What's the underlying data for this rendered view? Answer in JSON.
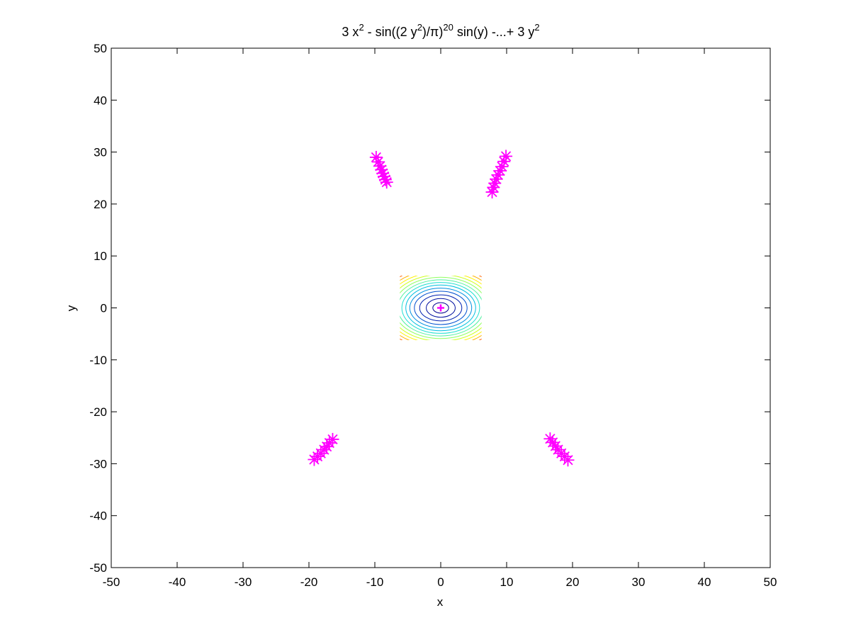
{
  "chart_data": {
    "type": "scatter",
    "title": "3 x^2 - sin((2 y^2)/π)^20 sin(y) -...+ 3 y^2",
    "title_parts": {
      "p1": "3 x",
      "e1": "2",
      "p2": " - sin((2 y",
      "e2": "2",
      "p3": ")/π)",
      "e3": "20",
      "p4": " sin(y) -...+ 3 y",
      "e4": "2"
    },
    "xlabel": "x",
    "ylabel": "y",
    "xlim": [
      -50,
      50
    ],
    "ylim": [
      -50,
      50
    ],
    "xticks": [
      -50,
      -40,
      -30,
      -20,
      -10,
      0,
      10,
      20,
      30,
      40,
      50
    ],
    "yticks": [
      -50,
      -40,
      -30,
      -20,
      -10,
      0,
      10,
      20,
      30,
      40,
      50
    ],
    "grid": false,
    "box": true,
    "contour": {
      "x_range": [
        -6.2,
        6.2
      ],
      "y_range": [
        -6.2,
        6.2
      ],
      "levels": [
        {
          "rx": 1.2,
          "ry": 1.0,
          "color": "#00008f"
        },
        {
          "rx": 2.2,
          "ry": 1.8,
          "color": "#000f9f"
        },
        {
          "rx": 3.2,
          "ry": 2.5,
          "color": "#0020b0"
        },
        {
          "rx": 4.0,
          "ry": 3.2,
          "color": "#0050d0"
        },
        {
          "rx": 4.7,
          "ry": 3.8,
          "color": "#0090e0"
        },
        {
          "rx": 5.3,
          "ry": 4.4,
          "color": "#00c0e0"
        },
        {
          "rx": 5.9,
          "ry": 4.9,
          "color": "#20e0d0"
        },
        {
          "rx": 6.5,
          "ry": 5.4,
          "color": "#50f0a0"
        },
        {
          "rx": 7.1,
          "ry": 5.9,
          "color": "#90ff60"
        },
        {
          "rx": 7.7,
          "ry": 6.4,
          "color": "#d0ff20"
        },
        {
          "rx": 8.3,
          "ry": 6.9,
          "color": "#fff000"
        },
        {
          "rx": 8.9,
          "ry": 7.4,
          "color": "#ffb000"
        },
        {
          "rx": 9.5,
          "ry": 7.9,
          "color": "#ff6000"
        },
        {
          "rx": 10.1,
          "ry": 8.4,
          "color": "#e01000"
        },
        {
          "rx": 10.7,
          "ry": 8.9,
          "color": "#a00000"
        },
        {
          "rx": 11.3,
          "ry": 9.4,
          "color": "#800000"
        }
      ]
    },
    "marker_color": "#ff00ff",
    "series": [
      {
        "marker": "star",
        "x": [
          -9.8,
          -9.5,
          -9.2,
          -9.0,
          -8.8,
          -8.6,
          -8.4,
          -8.2
        ],
        "y": [
          29.0,
          28.1,
          27.3,
          26.6,
          25.9,
          25.3,
          24.7,
          24.2
        ]
      },
      {
        "marker": "star",
        "x": [
          9.9,
          9.6,
          9.3,
          9.0,
          8.7,
          8.4,
          8.2,
          8.0,
          7.8
        ],
        "y": [
          29.2,
          28.2,
          27.2,
          26.4,
          25.6,
          24.8,
          24.0,
          23.2,
          22.3
        ]
      },
      {
        "marker": "star",
        "x": [
          -16.4,
          -16.9,
          -17.3,
          -17.7,
          -18.2,
          -18.7,
          -19.2
        ],
        "y": [
          -25.3,
          -26.0,
          -26.7,
          -27.3,
          -28.0,
          -28.6,
          -29.2
        ]
      },
      {
        "marker": "star",
        "x": [
          16.6,
          17.0,
          17.4,
          17.8,
          18.3,
          18.8,
          19.3
        ],
        "y": [
          -25.2,
          -25.9,
          -26.6,
          -27.3,
          -28.0,
          -28.6,
          -29.3
        ]
      },
      {
        "marker": "plus",
        "x": [
          0
        ],
        "y": [
          0
        ]
      }
    ]
  }
}
